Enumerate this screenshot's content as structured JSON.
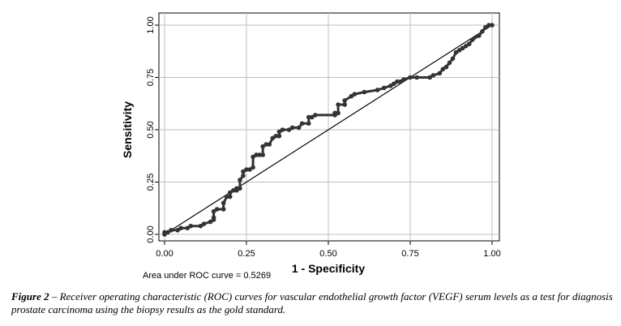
{
  "chart_data": {
    "type": "line",
    "title": "",
    "xlabel": "1 - Specificity",
    "ylabel": "Sensitivity",
    "xlim": [
      0,
      1
    ],
    "ylim": [
      0,
      1
    ],
    "x_ticks": [
      "0.00",
      "0.25",
      "0.50",
      "0.75",
      "1.00"
    ],
    "y_ticks": [
      "0.00",
      "0.25",
      "0.50",
      "0.75",
      "1.00"
    ],
    "grid": "vertical and horizontal gridlines at tick positions",
    "annotation": "Area under ROC curve = 0.5269",
    "series": [
      {
        "style": "step line with filled circle markers",
        "color": "#333333",
        "points": [
          [
            0.0,
            0.0
          ],
          [
            0.0,
            0.01
          ],
          [
            0.01,
            0.01
          ],
          [
            0.02,
            0.02
          ],
          [
            0.04,
            0.02
          ],
          [
            0.05,
            0.03
          ],
          [
            0.07,
            0.03
          ],
          [
            0.08,
            0.04
          ],
          [
            0.11,
            0.04
          ],
          [
            0.12,
            0.05
          ],
          [
            0.14,
            0.06
          ],
          [
            0.15,
            0.07
          ],
          [
            0.15,
            0.08
          ],
          [
            0.15,
            0.11
          ],
          [
            0.16,
            0.12
          ],
          [
            0.18,
            0.12
          ],
          [
            0.18,
            0.15
          ],
          [
            0.19,
            0.18
          ],
          [
            0.2,
            0.18
          ],
          [
            0.2,
            0.2
          ],
          [
            0.21,
            0.21
          ],
          [
            0.22,
            0.21
          ],
          [
            0.22,
            0.22
          ],
          [
            0.23,
            0.22
          ],
          [
            0.23,
            0.26
          ],
          [
            0.24,
            0.28
          ],
          [
            0.24,
            0.3
          ],
          [
            0.25,
            0.31
          ],
          [
            0.26,
            0.31
          ],
          [
            0.27,
            0.32
          ],
          [
            0.27,
            0.37
          ],
          [
            0.28,
            0.38
          ],
          [
            0.29,
            0.38
          ],
          [
            0.3,
            0.38
          ],
          [
            0.3,
            0.42
          ],
          [
            0.31,
            0.43
          ],
          [
            0.32,
            0.43
          ],
          [
            0.33,
            0.46
          ],
          [
            0.34,
            0.47
          ],
          [
            0.35,
            0.47
          ],
          [
            0.35,
            0.49
          ],
          [
            0.36,
            0.5
          ],
          [
            0.38,
            0.5
          ],
          [
            0.39,
            0.51
          ],
          [
            0.41,
            0.51
          ],
          [
            0.42,
            0.53
          ],
          [
            0.44,
            0.53
          ],
          [
            0.44,
            0.56
          ],
          [
            0.45,
            0.56
          ],
          [
            0.46,
            0.57
          ],
          [
            0.52,
            0.57
          ],
          [
            0.52,
            0.58
          ],
          [
            0.53,
            0.58
          ],
          [
            0.53,
            0.62
          ],
          [
            0.55,
            0.62
          ],
          [
            0.55,
            0.64
          ],
          [
            0.57,
            0.66
          ],
          [
            0.58,
            0.67
          ],
          [
            0.61,
            0.68
          ],
          [
            0.65,
            0.69
          ],
          [
            0.67,
            0.7
          ],
          [
            0.69,
            0.71
          ],
          [
            0.7,
            0.72
          ],
          [
            0.71,
            0.73
          ],
          [
            0.72,
            0.73
          ],
          [
            0.73,
            0.74
          ],
          [
            0.75,
            0.75
          ],
          [
            0.77,
            0.75
          ],
          [
            0.81,
            0.75
          ],
          [
            0.82,
            0.76
          ],
          [
            0.84,
            0.77
          ],
          [
            0.85,
            0.79
          ],
          [
            0.86,
            0.8
          ],
          [
            0.87,
            0.82
          ],
          [
            0.88,
            0.84
          ],
          [
            0.89,
            0.87
          ],
          [
            0.9,
            0.88
          ],
          [
            0.91,
            0.89
          ],
          [
            0.92,
            0.9
          ],
          [
            0.93,
            0.91
          ],
          [
            0.94,
            0.93
          ],
          [
            0.96,
            0.95
          ],
          [
            0.97,
            0.97
          ],
          [
            0.98,
            0.99
          ],
          [
            0.99,
            1.0
          ],
          [
            1.0,
            1.0
          ]
        ]
      },
      {
        "style": "reference line",
        "color": "#000000",
        "points": [
          [
            0,
            0
          ],
          [
            1,
            1
          ]
        ]
      }
    ]
  },
  "caption": {
    "lead": "Figure 2",
    "text": " – Receiver operating characteristic (ROC) curves for vascular endothelial growth factor (VEGF) serum levels as a test for diagnosis prostate carcinoma using the biopsy results as the gold standard."
  }
}
